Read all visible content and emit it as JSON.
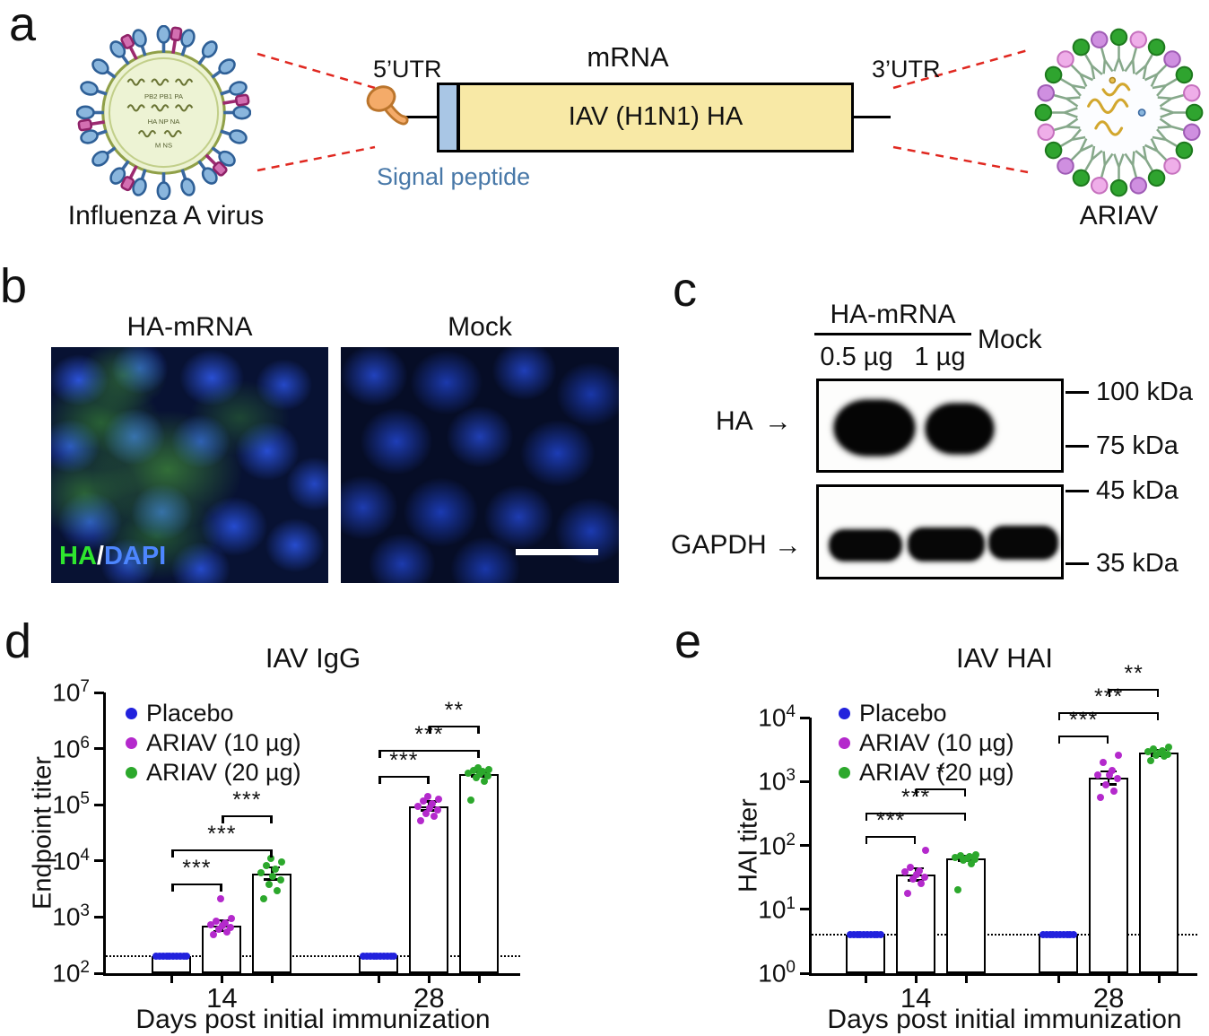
{
  "panel_labels": {
    "a": "a",
    "b": "b",
    "c": "c",
    "d": "d",
    "e": "e"
  },
  "panel_a": {
    "virus_caption": "Influenza A virus",
    "virus_gene_rows": [
      "PB2  PB1  PA",
      "HA  NP  NA",
      "M  NS"
    ],
    "mrna_title": "mRNA",
    "utr5": "5’UTR",
    "utr3": "3’UTR",
    "gene_box": "IAV (H1N1) HA",
    "signal_peptide": "Signal peptide",
    "ariav_caption": "ARIAV"
  },
  "panel_b": {
    "left_title": "HA-mRNA",
    "right_title": "Mock",
    "overlay": {
      "ha": "HA",
      "slash": "/",
      "dapi": "DAPI"
    },
    "colors": {
      "ha": "#2ee62e",
      "dapi": "#4d86ff"
    }
  },
  "panel_c": {
    "header": "HA-mRNA",
    "lanes": {
      "lane1": "0.5 µg",
      "lane2": "1 µg",
      "lane3": "Mock"
    },
    "blots": {
      "top_label": "HA",
      "bottom_label": "GAPDH"
    },
    "arrow": "→",
    "markers": {
      "m100": "100 kDa",
      "m75": "75 kDa",
      "m45": "45 kDa",
      "m35": "35 kDa"
    }
  },
  "chart_data": [
    {
      "type": "bar",
      "title": "IAV IgG",
      "ylabel": "Endpoint titer",
      "xlabel": "Days post initial immunization",
      "yscale": "log10",
      "ylim_exp": [
        2,
        7
      ],
      "grid": false,
      "legend_position": "top-left",
      "categories": [
        "14",
        "28"
      ],
      "baseline": 200,
      "series": [
        {
          "name": "Placebo",
          "color": "#2222dd",
          "values": [
            200,
            200
          ],
          "err": [
            null,
            null
          ],
          "points": [
            [
              200,
              200,
              200,
              200,
              200,
              200,
              200,
              200,
              200,
              200
            ],
            [
              200,
              200,
              200,
              200,
              200,
              200,
              200,
              200,
              200,
              200
            ]
          ]
        },
        {
          "name": "ARIAV (10 µg)",
          "color": "#b429cc",
          "values": [
            700,
            95000
          ],
          "err": [
            [
              560,
              880
            ],
            [
              78000,
              115000
            ]
          ],
          "points": [
            [
              480,
              550,
              600,
              650,
              700,
              720,
              780,
              850,
              950,
              2100
            ],
            [
              52000,
              63000,
              70000,
              80000,
              88000,
              95000,
              105000,
              115000,
              125000,
              140000
            ]
          ]
        },
        {
          "name": "ARIAV (20 µg)",
          "color": "#2ca82c",
          "values": [
            6000,
            350000
          ],
          "err": [
            [
              4600,
              7800
            ],
            [
              315000,
              390000
            ]
          ],
          "points": [
            [
              2100,
              2900,
              3800,
              4600,
              5400,
              6200,
              7000,
              8200,
              9500,
              11000
            ],
            [
              120000,
              260000,
              300000,
              330000,
              350000,
              370000,
              390000,
              410000,
              430000,
              450000
            ]
          ]
        }
      ],
      "brackets": [
        {
          "group": 0,
          "s1": 0,
          "s2": 1,
          "label": "***",
          "y": 4000
        },
        {
          "group": 0,
          "s1": 0,
          "s2": 2,
          "label": "***",
          "y": 16000
        },
        {
          "group": 0,
          "s1": 1,
          "s2": 2,
          "label": "***",
          "y": 65000
        },
        {
          "group": 1,
          "s1": 0,
          "s2": 1,
          "label": "***",
          "y": 330000
        },
        {
          "group": 1,
          "s1": 0,
          "s2": 2,
          "label": "***",
          "y": 950000
        },
        {
          "group": 1,
          "s1": 1,
          "s2": 2,
          "label": "**",
          "y": 2600000
        }
      ]
    },
    {
      "type": "bar",
      "title": "IAV HAI",
      "ylabel": "HAI titer",
      "xlabel": "Days post initial immunization",
      "yscale": "log10",
      "ylim_exp": [
        0,
        4
      ],
      "grid": false,
      "legend_position": "top-left",
      "categories": [
        "14",
        "28"
      ],
      "baseline": 4,
      "series": [
        {
          "name": "Placebo",
          "color": "#2222dd",
          "values": [
            4,
            4
          ],
          "err": [
            null,
            null
          ],
          "points": [
            [
              4,
              4,
              4,
              4,
              4,
              4,
              4,
              4,
              4,
              4
            ],
            [
              4,
              4,
              4,
              4,
              4,
              4,
              4,
              4,
              4,
              4
            ]
          ]
        },
        {
          "name": "ARIAV (10 µg)",
          "color": "#b429cc",
          "values": [
            35,
            1150
          ],
          "err": [
            [
              28,
              44
            ],
            [
              900,
              1450
            ]
          ],
          "points": [
            [
              18,
              25,
              30,
              32,
              35,
              38,
              40,
              45,
              85
            ],
            [
              560,
              700,
              900,
              1100,
              1280,
              1280,
              1500,
              2000,
              2600
            ]
          ]
        },
        {
          "name": "ARIAV (20 µg)",
          "color": "#2ca82c",
          "values": [
            62,
            2800
          ],
          "err": [
            [
              56,
              68
            ],
            [
              2500,
              3150
            ]
          ],
          "points": [
            [
              20,
              52,
              58,
              60,
              62,
              64,
              66,
              68,
              72
            ],
            [
              2100,
              2500,
              2560,
              2700,
              2800,
              2900,
              3000,
              3200,
              3400
            ]
          ]
        }
      ],
      "brackets": [
        {
          "group": 0,
          "s1": 0,
          "s2": 1,
          "label": "***",
          "y": 140
        },
        {
          "group": 0,
          "s1": 0,
          "s2": 2,
          "label": "***",
          "y": 330
        },
        {
          "group": 0,
          "s1": 1,
          "s2": 2,
          "label": "*",
          "y": 780
        },
        {
          "group": 1,
          "s1": 0,
          "s2": 1,
          "label": "***",
          "y": 5200
        },
        {
          "group": 1,
          "s1": 0,
          "s2": 2,
          "label": "***",
          "y": 12000
        },
        {
          "group": 1,
          "s1": 1,
          "s2": 2,
          "label": "**",
          "y": 28000
        }
      ]
    }
  ]
}
